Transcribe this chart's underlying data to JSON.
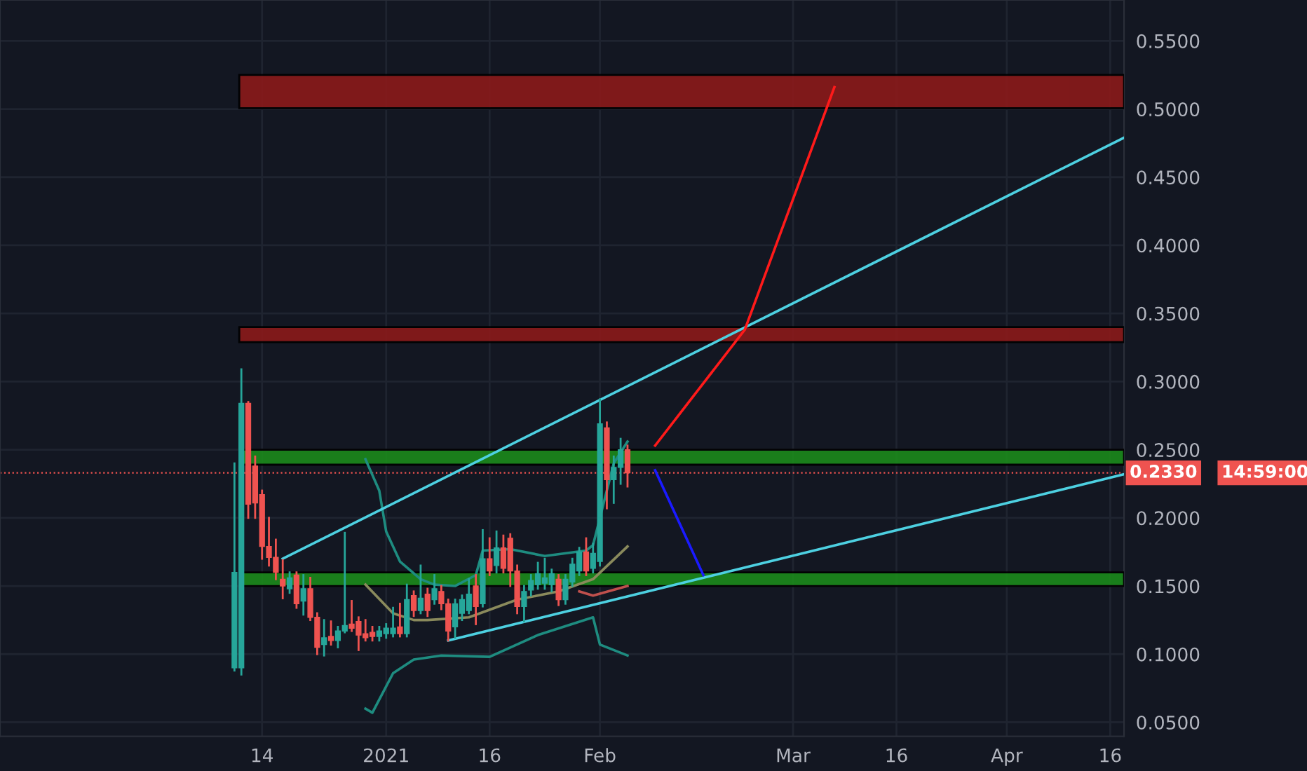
{
  "chart_data": {
    "type": "candlestick",
    "x": [
      "2020-12-10",
      "2020-12-11",
      "2020-12-12",
      "2020-12-13",
      "2020-12-14",
      "2020-12-15",
      "2020-12-16",
      "2020-12-17",
      "2020-12-18",
      "2020-12-19",
      "2020-12-20",
      "2020-12-21",
      "2020-12-22",
      "2020-12-23",
      "2020-12-24",
      "2020-12-25",
      "2020-12-26",
      "2020-12-27",
      "2020-12-28",
      "2020-12-29",
      "2020-12-30",
      "2020-12-31",
      "2021-01-01",
      "2021-01-02",
      "2021-01-03",
      "2021-01-04",
      "2021-01-05",
      "2021-01-06",
      "2021-01-07",
      "2021-01-08",
      "2021-01-09",
      "2021-01-10",
      "2021-01-11",
      "2021-01-12",
      "2021-01-13",
      "2021-01-14",
      "2021-01-15",
      "2021-01-16",
      "2021-01-17",
      "2021-01-18",
      "2021-01-19",
      "2021-01-20",
      "2021-01-21",
      "2021-01-22",
      "2021-01-23",
      "2021-01-24",
      "2021-01-25",
      "2021-01-26",
      "2021-01-27",
      "2021-01-28",
      "2021-01-29",
      "2021-01-30",
      "2021-01-31",
      "2021-02-01",
      "2021-02-02",
      "2021-02-03",
      "2021-02-04",
      "2021-02-05"
    ],
    "ohlc": [
      [
        0.09,
        0.24,
        0.088,
        0.16
      ],
      [
        0.09,
        0.309,
        0.085,
        0.284
      ],
      [
        0.284,
        0.285,
        0.2,
        0.21
      ],
      [
        0.238,
        0.245,
        0.2,
        0.211
      ],
      [
        0.217,
        0.22,
        0.17,
        0.179
      ],
      [
        0.179,
        0.2,
        0.165,
        0.171
      ],
      [
        0.171,
        0.184,
        0.155,
        0.16
      ],
      [
        0.155,
        0.169,
        0.141,
        0.15
      ],
      [
        0.148,
        0.16,
        0.145,
        0.156
      ],
      [
        0.158,
        0.16,
        0.134,
        0.137
      ],
      [
        0.139,
        0.158,
        0.129,
        0.148
      ],
      [
        0.148,
        0.156,
        0.125,
        0.127
      ],
      [
        0.127,
        0.13,
        0.1,
        0.105
      ],
      [
        0.107,
        0.125,
        0.099,
        0.112
      ],
      [
        0.113,
        0.124,
        0.107,
        0.11
      ],
      [
        0.11,
        0.12,
        0.105,
        0.117
      ],
      [
        0.117,
        0.189,
        0.116,
        0.121
      ],
      [
        0.122,
        0.139,
        0.117,
        0.119
      ],
      [
        0.124,
        0.127,
        0.103,
        0.114
      ],
      [
        0.115,
        0.125,
        0.11,
        0.112
      ],
      [
        0.116,
        0.12,
        0.11,
        0.113
      ],
      [
        0.113,
        0.12,
        0.11,
        0.117
      ],
      [
        0.115,
        0.122,
        0.112,
        0.119
      ],
      [
        0.115,
        0.134,
        0.113,
        0.119
      ],
      [
        0.12,
        0.137,
        0.113,
        0.115
      ],
      [
        0.115,
        0.151,
        0.113,
        0.14
      ],
      [
        0.143,
        0.146,
        0.128,
        0.132
      ],
      [
        0.132,
        0.165,
        0.13,
        0.141
      ],
      [
        0.144,
        0.148,
        0.128,
        0.132
      ],
      [
        0.14,
        0.158,
        0.137,
        0.148
      ],
      [
        0.146,
        0.15,
        0.133,
        0.137
      ],
      [
        0.137,
        0.14,
        0.11,
        0.117
      ],
      [
        0.12,
        0.14,
        0.112,
        0.137
      ],
      [
        0.13,
        0.143,
        0.125,
        0.14
      ],
      [
        0.132,
        0.155,
        0.13,
        0.144
      ],
      [
        0.15,
        0.158,
        0.122,
        0.135
      ],
      [
        0.137,
        0.191,
        0.135,
        0.17
      ],
      [
        0.17,
        0.185,
        0.158,
        0.161
      ],
      [
        0.165,
        0.19,
        0.16,
        0.178
      ],
      [
        0.178,
        0.187,
        0.16,
        0.163
      ],
      [
        0.185,
        0.188,
        0.15,
        0.161
      ],
      [
        0.161,
        0.165,
        0.13,
        0.135
      ],
      [
        0.135,
        0.15,
        0.124,
        0.146
      ],
      [
        0.147,
        0.158,
        0.143,
        0.154
      ],
      [
        0.151,
        0.167,
        0.148,
        0.159
      ],
      [
        0.152,
        0.17,
        0.148,
        0.156
      ],
      [
        0.151,
        0.162,
        0.146,
        0.159
      ],
      [
        0.155,
        0.158,
        0.136,
        0.14
      ],
      [
        0.14,
        0.158,
        0.137,
        0.155
      ],
      [
        0.153,
        0.17,
        0.15,
        0.166
      ],
      [
        0.161,
        0.178,
        0.158,
        0.175
      ],
      [
        0.175,
        0.185,
        0.158,
        0.161
      ],
      [
        0.163,
        0.181,
        0.16,
        0.174
      ],
      [
        0.168,
        0.287,
        0.165,
        0.269
      ],
      [
        0.266,
        0.27,
        0.207,
        0.228
      ],
      [
        0.228,
        0.245,
        0.211,
        0.237
      ],
      [
        0.237,
        0.258,
        0.225,
        0.25
      ],
      [
        0.25,
        0.253,
        0.223,
        0.233
      ]
    ],
    "colors": [
      "#26a69a",
      "#26a69a",
      "#ef5350",
      "#ef5350",
      "#ef5350",
      "#ef5350",
      "#ef5350",
      "#ef5350",
      "#26a69a",
      "#ef5350",
      "#26a69a",
      "#ef5350",
      "#ef5350",
      "#26a69a",
      "#ef5350",
      "#26a69a",
      "#26a69a",
      "#ef5350",
      "#ef5350",
      "#ef5350",
      "#ef5350",
      "#26a69a",
      "#26a69a",
      "#26a69a",
      "#ef5350",
      "#26a69a",
      "#ef5350",
      "#26a69a",
      "#ef5350",
      "#26a69a",
      "#ef5350",
      "#ef5350",
      "#26a69a",
      "#26a69a",
      "#26a69a",
      "#ef5350",
      "#26a69a",
      "#ef5350",
      "#26a69a",
      "#ef5350",
      "#ef5350",
      "#ef5350",
      "#26a69a",
      "#26a69a",
      "#26a69a",
      "#26a69a",
      "#26a69a",
      "#ef5350",
      "#26a69a",
      "#26a69a",
      "#26a69a",
      "#ef5350",
      "#26a69a",
      "#26a69a",
      "#ef5350",
      "#26a69a",
      "#26a69a",
      "#ef5350"
    ],
    "series": [
      {
        "type": "line",
        "color": "#1e8c80",
        "x": [
          "2020-12-29",
          "2020-12-31",
          "2021-01-01",
          "2021-01-03",
          "2021-01-06",
          "2021-01-08",
          "2021-01-11",
          "2021-01-14",
          "2021-01-15",
          "2021-01-19",
          "2021-01-24",
          "2021-01-30",
          "2021-01-31",
          "2021-02-01",
          "2021-02-03",
          "2021-02-05"
        ],
        "values": [
          0.243,
          0.22,
          0.19,
          0.168,
          0.155,
          0.151,
          0.15,
          0.158,
          0.176,
          0.177,
          0.172,
          0.176,
          0.18,
          0.2,
          0.24,
          0.256
        ]
      },
      {
        "type": "line",
        "color": "#8a8a5c",
        "x": [
          "2020-12-29",
          "2021-01-02",
          "2021-01-05",
          "2021-01-07",
          "2021-01-13",
          "2021-01-20",
          "2021-01-26",
          "2021-01-31",
          "2021-02-05"
        ],
        "values": [
          0.151,
          0.13,
          0.125,
          0.125,
          0.127,
          0.14,
          0.146,
          0.155,
          0.179
        ]
      },
      {
        "type": "line",
        "color": "#1e8c80",
        "x": [
          "2020-12-29",
          "2020-12-30",
          "2021-01-02",
          "2021-01-05",
          "2021-01-09",
          "2021-01-16",
          "2021-01-23",
          "2021-01-31",
          "2021-02-01",
          "2021-02-05"
        ],
        "values": [
          0.06,
          0.057,
          0.086,
          0.096,
          0.099,
          0.098,
          0.114,
          0.127,
          0.107,
          0.099
        ]
      },
      {
        "type": "line",
        "color": "#c0504d",
        "x": [
          "2021-01-29",
          "2021-01-31",
          "2021-02-05"
        ],
        "values": [
          0.146,
          0.143,
          0.15
        ]
      },
      {
        "type": "line",
        "color": "#4dd0e1",
        "x": [
          "2020-12-17",
          "2021-04-18"
        ],
        "values": [
          0.17,
          0.479
        ]
      },
      {
        "type": "line",
        "color": "#4dd0e1",
        "x": [
          "2021-01-10",
          "2021-04-18"
        ],
        "values": [
          0.11,
          0.232
        ]
      },
      {
        "type": "line",
        "color": "#ff1a1a",
        "x": [
          "2021-02-09",
          "2021-02-22",
          "2021-03-07"
        ],
        "values": [
          0.253,
          0.338,
          0.516
        ]
      },
      {
        "type": "line",
        "color": "#1a1aff",
        "x": [
          "2021-02-09",
          "2021-02-16"
        ],
        "values": [
          0.235,
          0.158
        ]
      }
    ],
    "bands": [
      {
        "axis": "y",
        "from": 0.5006,
        "to": 0.525,
        "color": "#8b1a1a"
      },
      {
        "axis": "y",
        "from": 0.329,
        "to": 0.34,
        "color": "#8b1a1a"
      },
      {
        "axis": "y",
        "from": 0.239,
        "to": 0.25,
        "color": "#1b8a1b"
      },
      {
        "axis": "y",
        "from": 0.15,
        "to": 0.16,
        "color": "#1b8a1b"
      }
    ],
    "ref_lines": [
      {
        "axis": "y",
        "value": 0.233,
        "label": "0.2330",
        "color": "#ef5350",
        "line_style": "dotted"
      }
    ],
    "annotations": [
      "14:59:00"
    ],
    "xlim": [
      "2020-11-06",
      "2021-04-18"
    ],
    "xticks": [
      {
        "value": "2020-12-14",
        "label": "14"
      },
      {
        "value": "2021-01-01",
        "label": "2021"
      },
      {
        "value": "2021-01-16",
        "label": "16"
      },
      {
        "value": "2021-02-01",
        "label": "Feb"
      },
      {
        "value": "2021-03-01",
        "label": "Mar"
      },
      {
        "value": "2021-03-16",
        "label": "16"
      },
      {
        "value": "2021-04-01",
        "label": "Apr"
      },
      {
        "value": "2021-04-16",
        "label": "16"
      }
    ],
    "ylim": [
      0.0397,
      0.58
    ],
    "yticks": [
      {
        "value": 0.05,
        "label": "0.0500"
      },
      {
        "value": 0.1,
        "label": "0.1000"
      },
      {
        "value": 0.15,
        "label": "0.1500"
      },
      {
        "value": 0.2,
        "label": "0.2000"
      },
      {
        "value": 0.25,
        "label": "0.2500"
      },
      {
        "value": 0.3,
        "label": "0.3000"
      },
      {
        "value": 0.35,
        "label": "0.3500"
      },
      {
        "value": 0.4,
        "label": "0.4000"
      },
      {
        "value": 0.45,
        "label": "0.4500"
      },
      {
        "value": 0.5,
        "label": "0.5000"
      },
      {
        "value": 0.55,
        "label": "0.5500"
      }
    ],
    "grid": true,
    "legend": false
  }
}
